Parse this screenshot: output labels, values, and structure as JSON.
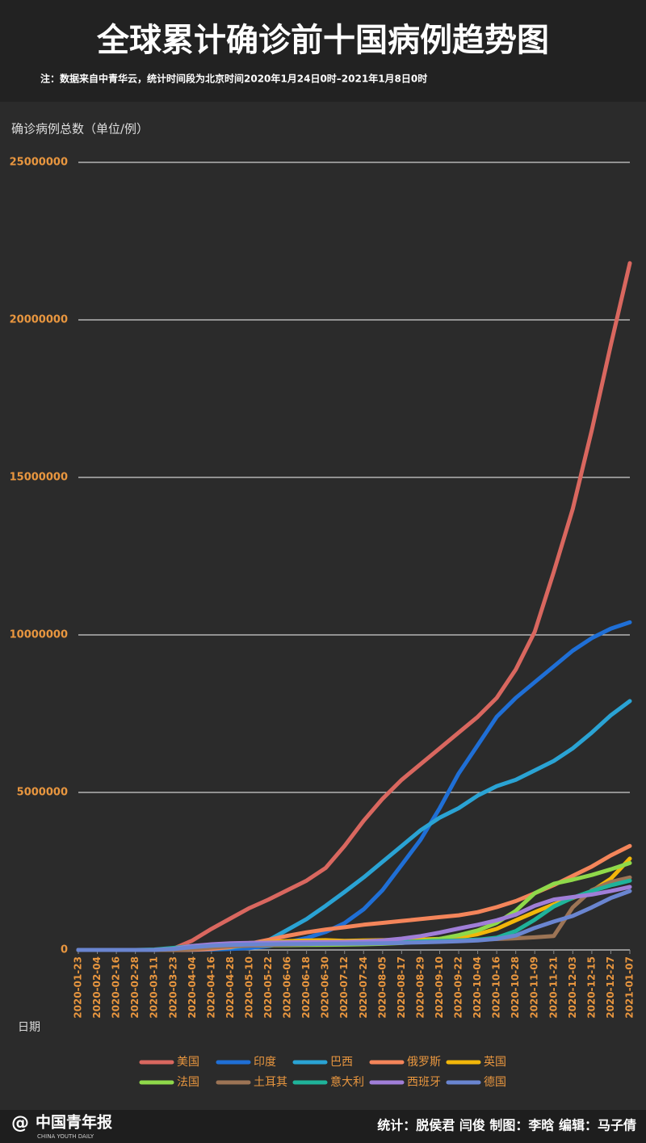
{
  "chart_data": {
    "type": "line",
    "title": "全球累计确诊前十国病例趋势图",
    "subtitle": "注：数据来自中青华云，统计时间段为北京时间2020年1月24日0时–2021年1月8日0时",
    "y_label": "确诊病例总数（单位/例）",
    "x_label": "日期",
    "x": [
      "2020-01-23",
      "2020-02-04",
      "2020-02-16",
      "2020-02-28",
      "2020-03-11",
      "2020-03-23",
      "2020-04-04",
      "2020-04-16",
      "2020-04-28",
      "2020-05-10",
      "2020-05-22",
      "2020-06-06",
      "2020-06-18",
      "2020-06-30",
      "2020-07-12",
      "2020-07-24",
      "2020-08-05",
      "2020-08-17",
      "2020-08-29",
      "2020-09-10",
      "2020-09-22",
      "2020-10-04",
      "2020-10-16",
      "2020-10-28",
      "2020-11-09",
      "2020-11-21",
      "2020-12-03",
      "2020-12-15",
      "2020-12-27",
      "2021-01-07"
    ],
    "ylim": [
      0,
      25000000
    ],
    "yticks": [
      0,
      5000000,
      10000000,
      15000000,
      20000000,
      25000000
    ],
    "grid": true,
    "series": [
      {
        "name": "美国",
        "color": "#d9675f",
        "values": [
          0,
          0,
          0,
          0,
          1000,
          40000,
          300000,
          670000,
          1000000,
          1330000,
          1600000,
          1900000,
          2200000,
          2600000,
          3300000,
          4100000,
          4800000,
          5400000,
          5900000,
          6400000,
          6900000,
          7400000,
          8000000,
          8900000,
          10100000,
          12000000,
          14000000,
          16500000,
          19200000,
          21800000
        ]
      },
      {
        "name": "印度",
        "color": "#1f6fd6",
        "values": [
          0,
          0,
          0,
          0,
          0,
          0,
          3000,
          13000,
          30000,
          60000,
          120000,
          240000,
          380000,
          570000,
          850000,
          1290000,
          1900000,
          2700000,
          3500000,
          4500000,
          5600000,
          6500000,
          7400000,
          8000000,
          8500000,
          9000000,
          9500000,
          9900000,
          10200000,
          10400000
        ]
      },
      {
        "name": "巴西",
        "color": "#2aa3d4",
        "values": [
          0,
          0,
          0,
          0,
          0,
          1500,
          10000,
          30000,
          70000,
          160000,
          310000,
          640000,
          980000,
          1400000,
          1840000,
          2300000,
          2800000,
          3300000,
          3800000,
          4200000,
          4500000,
          4900000,
          5200000,
          5400000,
          5700000,
          6000000,
          6400000,
          6900000,
          7450000,
          7900000
        ]
      },
      {
        "name": "俄罗斯",
        "color": "#f4855a",
        "values": [
          0,
          0,
          0,
          0,
          0,
          500,
          5000,
          30000,
          90000,
          200000,
          320000,
          450000,
          560000,
          650000,
          720000,
          800000,
          860000,
          920000,
          980000,
          1040000,
          1100000,
          1200000,
          1360000,
          1550000,
          1800000,
          2060000,
          2350000,
          2650000,
          3000000,
          3300000
        ]
      },
      {
        "name": "英国",
        "color": "#f2b70a",
        "values": [
          0,
          0,
          0,
          0,
          500,
          7000,
          40000,
          100000,
          160000,
          220000,
          250000,
          280000,
          300000,
          310000,
          290000,
          300000,
          310000,
          320000,
          330000,
          350000,
          400000,
          500000,
          670000,
          940000,
          1200000,
          1450000,
          1650000,
          1870000,
          2260000,
          2900000
        ]
      },
      {
        "name": "法国",
        "color": "#8fd94a",
        "values": [
          0,
          0,
          0,
          0,
          2000,
          20000,
          70000,
          110000,
          130000,
          140000,
          145000,
          155000,
          160000,
          165000,
          170000,
          180000,
          195000,
          220000,
          280000,
          350000,
          470000,
          620000,
          860000,
          1240000,
          1800000,
          2100000,
          2230000,
          2380000,
          2560000,
          2760000
        ]
      },
      {
        "name": "土耳其",
        "color": "#9c7455",
        "values": [
          0,
          0,
          0,
          0,
          0,
          1500,
          23000,
          75000,
          115000,
          138000,
          155000,
          170000,
          185000,
          200000,
          210000,
          225000,
          235000,
          250000,
          265000,
          285000,
          305000,
          325000,
          345000,
          370000,
          400000,
          440000,
          1350000,
          1900000,
          2160000,
          2300000
        ]
      },
      {
        "name": "意大利",
        "color": "#1fb39a",
        "values": [
          0,
          0,
          0,
          1100,
          12000,
          64000,
          125000,
          168000,
          200000,
          219000,
          228000,
          235000,
          238000,
          240000,
          243000,
          246000,
          249000,
          254000,
          266000,
          282000,
          300000,
          325000,
          390000,
          600000,
          960000,
          1380000,
          1660000,
          1870000,
          2050000,
          2200000
        ]
      },
      {
        "name": "西班牙",
        "color": "#a07ed8",
        "values": [
          0,
          0,
          0,
          30,
          2000,
          35000,
          125000,
          180000,
          210000,
          224000,
          233000,
          240000,
          245000,
          250000,
          255000,
          270000,
          300000,
          360000,
          440000,
          550000,
          680000,
          800000,
          940000,
          1120000,
          1400000,
          1600000,
          1680000,
          1760000,
          1870000,
          2000000
        ]
      },
      {
        "name": "德国",
        "color": "#6a85d0",
        "values": [
          0,
          0,
          0,
          60,
          1900,
          29000,
          91000,
          134000,
          159000,
          171000,
          179000,
          184000,
          189000,
          195000,
          199000,
          204000,
          212000,
          225000,
          242000,
          256000,
          277000,
          300000,
          350000,
          460000,
          700000,
          900000,
          1080000,
          1350000,
          1650000,
          1870000
        ]
      }
    ]
  },
  "footer": {
    "logo": "中国青年报",
    "logo_en": "CHINA YOUTH DAILY",
    "credits": "统计：脱侯君 闫俊 制图：李晗 编辑：马子倩"
  }
}
